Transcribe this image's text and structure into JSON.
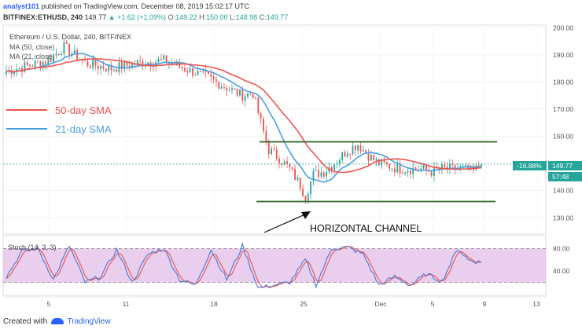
{
  "header": {
    "author": "analyst101",
    "published": "published on TradingView.com, December 08, 2019 15:02:17 UTC",
    "symbol": "BITFINEX:ETHUSD, 240",
    "price": "149.77",
    "change": "▲ +1.62 (+1.09%)",
    "o_label": "O:",
    "o_val": "149.22",
    "h_label": "H:",
    "h_val": "150.00",
    "l_label": "L:",
    "l_val": "148.98",
    "c_label": "C:",
    "c_val": "149.77"
  },
  "footer": {
    "created_with": "Created with",
    "brand": "TradingView"
  },
  "colors": {
    "up": "#26a69a",
    "down": "#ef5350",
    "ma50": "#ef5350",
    "ma21": "#4a9fe0",
    "channel": "#3b6b2f",
    "stoch_bg": "#e1bee7",
    "stoch_k": "#4a78d0",
    "stoch_d": "#ef5350"
  },
  "chart_data": {
    "type": "candlestick",
    "title": "Ethereum / U.S. Dollar, 240, BITFINEX",
    "legend": [
      "MA (50, close)",
      "MA (21, close)"
    ],
    "annotations": {
      "sma50": "50-day SMA",
      "sma21": "21-day SMA",
      "channel": "HORIZONTAL CHANNEL",
      "channel_top": 158,
      "channel_bottom": 136
    },
    "ylim": [
      124,
      201
    ],
    "y_ticks": [
      "200.00",
      "190.00",
      "180.00",
      "170.00",
      "160.00",
      "150.00",
      "140.00",
      "130.00"
    ],
    "price_label": "149.77",
    "pct_label": "-16.88%",
    "countdown": "57:48",
    "x_ticks": [
      "5",
      "11",
      "18",
      "25",
      "Dec",
      "5",
      "9",
      "13"
    ],
    "price_anchors": [
      [
        0,
        184
      ],
      [
        8,
        186
      ],
      [
        16,
        188
      ],
      [
        22,
        193
      ],
      [
        30,
        187
      ],
      [
        40,
        185
      ],
      [
        50,
        187
      ],
      [
        60,
        188
      ],
      [
        68,
        185
      ],
      [
        76,
        182
      ],
      [
        84,
        178
      ],
      [
        90,
        175
      ],
      [
        94,
        176
      ],
      [
        97,
        165
      ],
      [
        100,
        155
      ],
      [
        104,
        152
      ],
      [
        108,
        148
      ],
      [
        112,
        142
      ],
      [
        114,
        138
      ],
      [
        117,
        146
      ],
      [
        121,
        147
      ],
      [
        126,
        151
      ],
      [
        130,
        155
      ],
      [
        134,
        157
      ],
      [
        138,
        153
      ],
      [
        142,
        150
      ],
      [
        146,
        149
      ],
      [
        150,
        148
      ],
      [
        154,
        148
      ],
      [
        158,
        148
      ],
      [
        162,
        147
      ],
      [
        166,
        148
      ],
      [
        170,
        148
      ],
      [
        174,
        148
      ],
      [
        178,
        147
      ],
      [
        181,
        150
      ]
    ],
    "stoch": {
      "title": "Stoch (14, 3, 3)",
      "ylim": [
        0,
        100
      ],
      "levels": [
        80,
        20
      ],
      "tick_labels": [
        "80.00",
        "40.00"
      ],
      "k_anchors": [
        [
          0,
          30
        ],
        [
          6,
          75
        ],
        [
          12,
          80
        ],
        [
          18,
          25
        ],
        [
          24,
          85
        ],
        [
          30,
          20
        ],
        [
          36,
          30
        ],
        [
          42,
          78
        ],
        [
          48,
          20
        ],
        [
          54,
          70
        ],
        [
          60,
          80
        ],
        [
          66,
          25
        ],
        [
          72,
          15
        ],
        [
          78,
          78
        ],
        [
          84,
          25
        ],
        [
          90,
          85
        ],
        [
          96,
          10
        ],
        [
          102,
          15
        ],
        [
          108,
          20
        ],
        [
          114,
          60
        ],
        [
          118,
          15
        ],
        [
          124,
          80
        ],
        [
          130,
          82
        ],
        [
          136,
          70
        ],
        [
          142,
          15
        ],
        [
          148,
          30
        ],
        [
          154,
          15
        ],
        [
          160,
          35
        ],
        [
          166,
          22
        ],
        [
          172,
          80
        ],
        [
          176,
          60
        ],
        [
          181,
          55
        ]
      ]
    }
  }
}
